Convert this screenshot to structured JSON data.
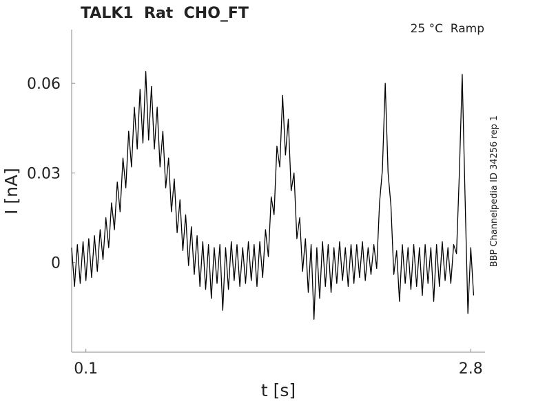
{
  "chart_data": {
    "type": "line",
    "title": "TALK1  Rat  CHO_FT",
    "subtitle": "25 °C  Ramp",
    "annotation": "BBP Channelpedia ID 34256 rep 1",
    "xlabel": "t [s]",
    "ylabel": "I [nA]",
    "xlim": [
      0,
      2.9
    ],
    "ylim": [
      -0.03,
      0.078
    ],
    "xticks": [
      0.1,
      2.8
    ],
    "yticks": [
      0,
      0.03,
      0.06
    ],
    "grid": false,
    "x": [
      0.0,
      0.02,
      0.04,
      0.06,
      0.08,
      0.1,
      0.12,
      0.14,
      0.16,
      0.18,
      0.2,
      0.22,
      0.24,
      0.26,
      0.28,
      0.3,
      0.32,
      0.34,
      0.36,
      0.38,
      0.4,
      0.42,
      0.44,
      0.46,
      0.48,
      0.5,
      0.52,
      0.54,
      0.56,
      0.58,
      0.6,
      0.62,
      0.64,
      0.66,
      0.68,
      0.7,
      0.72,
      0.74,
      0.76,
      0.78,
      0.8,
      0.82,
      0.84,
      0.86,
      0.88,
      0.9,
      0.92,
      0.94,
      0.96,
      0.98,
      1.0,
      1.02,
      1.04,
      1.06,
      1.08,
      1.1,
      1.12,
      1.14,
      1.16,
      1.18,
      1.2,
      1.22,
      1.24,
      1.26,
      1.28,
      1.3,
      1.32,
      1.34,
      1.36,
      1.38,
      1.4,
      1.42,
      1.44,
      1.46,
      1.48,
      1.5,
      1.52,
      1.54,
      1.56,
      1.58,
      1.6,
      1.62,
      1.64,
      1.66,
      1.68,
      1.7,
      1.72,
      1.74,
      1.76,
      1.78,
      1.8,
      1.82,
      1.84,
      1.86,
      1.88,
      1.9,
      1.92,
      1.94,
      1.96,
      1.98,
      2.0,
      2.02,
      2.04,
      2.06,
      2.08,
      2.1,
      2.12,
      2.14,
      2.16,
      2.18,
      2.2,
      2.22,
      2.24,
      2.26,
      2.28,
      2.3,
      2.32,
      2.34,
      2.36,
      2.38,
      2.4,
      2.42,
      2.44,
      2.46,
      2.48,
      2.5,
      2.52,
      2.54,
      2.56,
      2.58,
      2.6,
      2.62,
      2.64,
      2.66,
      2.68,
      2.7,
      2.72,
      2.74,
      2.76,
      2.78,
      2.8,
      2.82
    ],
    "series": [
      {
        "color": "#000000",
        "values": [
          0.005,
          -0.008,
          0.006,
          -0.007,
          0.007,
          -0.006,
          0.008,
          -0.005,
          0.009,
          -0.003,
          0.011,
          0.001,
          0.015,
          0.005,
          0.02,
          0.011,
          0.027,
          0.017,
          0.035,
          0.025,
          0.044,
          0.032,
          0.052,
          0.038,
          0.058,
          0.04,
          0.064,
          0.041,
          0.059,
          0.038,
          0.052,
          0.032,
          0.044,
          0.025,
          0.035,
          0.017,
          0.028,
          0.01,
          0.021,
          0.004,
          0.016,
          -0.001,
          0.012,
          -0.004,
          0.009,
          -0.008,
          0.007,
          -0.009,
          0.006,
          -0.012,
          0.005,
          -0.007,
          0.006,
          -0.016,
          0.005,
          -0.009,
          0.007,
          -0.006,
          0.006,
          -0.008,
          0.005,
          -0.007,
          0.007,
          -0.006,
          0.006,
          -0.008,
          0.007,
          -0.005,
          0.011,
          0.002,
          0.022,
          0.016,
          0.039,
          0.032,
          0.056,
          0.036,
          0.048,
          0.024,
          0.03,
          0.008,
          0.015,
          -0.003,
          0.008,
          -0.01,
          0.006,
          -0.019,
          0.005,
          -0.012,
          0.007,
          -0.008,
          0.006,
          -0.01,
          0.005,
          -0.007,
          0.007,
          -0.006,
          0.005,
          -0.008,
          0.006,
          -0.007,
          0.006,
          -0.005,
          0.007,
          -0.006,
          0.005,
          -0.004,
          0.006,
          -0.002,
          0.02,
          0.031,
          0.06,
          0.03,
          0.019,
          -0.004,
          0.004,
          -0.013,
          0.006,
          -0.007,
          0.005,
          -0.009,
          0.006,
          -0.008,
          0.005,
          -0.011,
          0.006,
          -0.007,
          0.005,
          -0.013,
          0.006,
          -0.008,
          0.007,
          -0.006,
          0.005,
          -0.007,
          0.006,
          0.003,
          0.03,
          0.063,
          0.022,
          -0.017,
          0.005,
          -0.011
        ]
      }
    ]
  }
}
